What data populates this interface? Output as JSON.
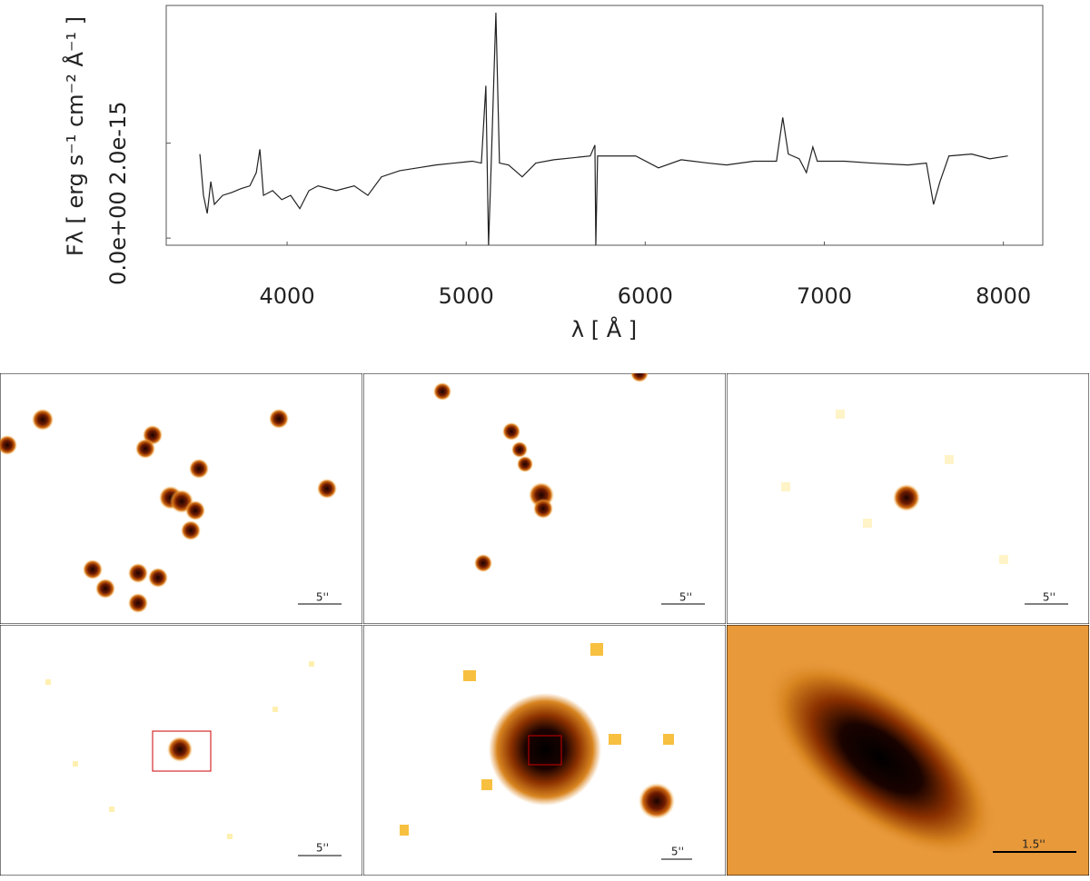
{
  "chart_data": {
    "type": "line",
    "xlabel": "λ [ Å ]",
    "ylabel": "Fλ [ erg s⁻¹ cm⁻² Å⁻¹ ]",
    "xlim": [
      3325,
      8220
    ],
    "ylim": [
      -1.5e-16,
      4.9e-15
    ],
    "xticks": [
      4000,
      5000,
      6000,
      7000,
      8000
    ],
    "yticks": [
      {
        "value": 0,
        "label": "0.0e+00"
      },
      {
        "value": 2e-15,
        "label": "2.0e-15"
      }
    ],
    "color": "#222222",
    "x": [
      3513,
      3533,
      3554,
      3574,
      3594,
      3640,
      3691,
      3741,
      3792,
      3828,
      3848,
      3868,
      3919,
      3970,
      4020,
      4071,
      4122,
      4173,
      4274,
      4375,
      4451,
      4527,
      4629,
      4730,
      4831,
      4933,
      5034,
      5085,
      5110,
      5125,
      5140,
      5166,
      5186,
      5237,
      5313,
      5389,
      5490,
      5592,
      5693,
      5719,
      5724,
      5734,
      5845,
      5947,
      6074,
      6201,
      6352,
      6454,
      6606,
      6733,
      6768,
      6799,
      6860,
      6900,
      6936,
      6961,
      7113,
      7265,
      7468,
      7570,
      7610,
      7646,
      7696,
      7823,
      7924,
      8025
    ],
    "values": [
      1.77e-15,
      9e-16,
      5.2e-16,
      1.19e-15,
      7.1e-16,
      9e-16,
      9.6e-16,
      1.04e-15,
      1.1e-15,
      1.38e-15,
      1.87e-15,
      9e-16,
      1e-15,
      8.1e-16,
      9e-16,
      6.2e-16,
      1e-15,
      1.1e-15,
      1e-15,
      1.1e-15,
      9e-16,
      1.29e-15,
      1.42e-15,
      1.48e-15,
      1.54e-15,
      1.58e-15,
      1.62e-15,
      1.58e-15,
      3.21e-15,
      -1.5e-16,
      1.58e-15,
      4.75e-15,
      1.58e-15,
      1.54e-15,
      1.29e-15,
      1.58e-15,
      1.65e-15,
      1.69e-15,
      1.73e-15,
      1.96e-15,
      -1.5e-16,
      1.73e-15,
      1.73e-15,
      1.73e-15,
      1.48e-15,
      1.65e-15,
      1.58e-15,
      1.54e-15,
      1.62e-15,
      1.62e-15,
      2.54e-15,
      1.77e-15,
      1.67e-15,
      1.38e-15,
      1.92e-15,
      1.62e-15,
      1.62e-15,
      1.58e-15,
      1.54e-15,
      1.58e-15,
      7.1e-16,
      1.19e-15,
      1.73e-15,
      1.77e-15,
      1.67e-15,
      1.73e-15
    ]
  },
  "panels": [
    {
      "scale": "5''"
    },
    {
      "scale": "5''"
    },
    {
      "scale": "5''"
    },
    {
      "scale": "5''"
    },
    {
      "scale": "5''"
    },
    {
      "scale": "1.5''"
    }
  ]
}
